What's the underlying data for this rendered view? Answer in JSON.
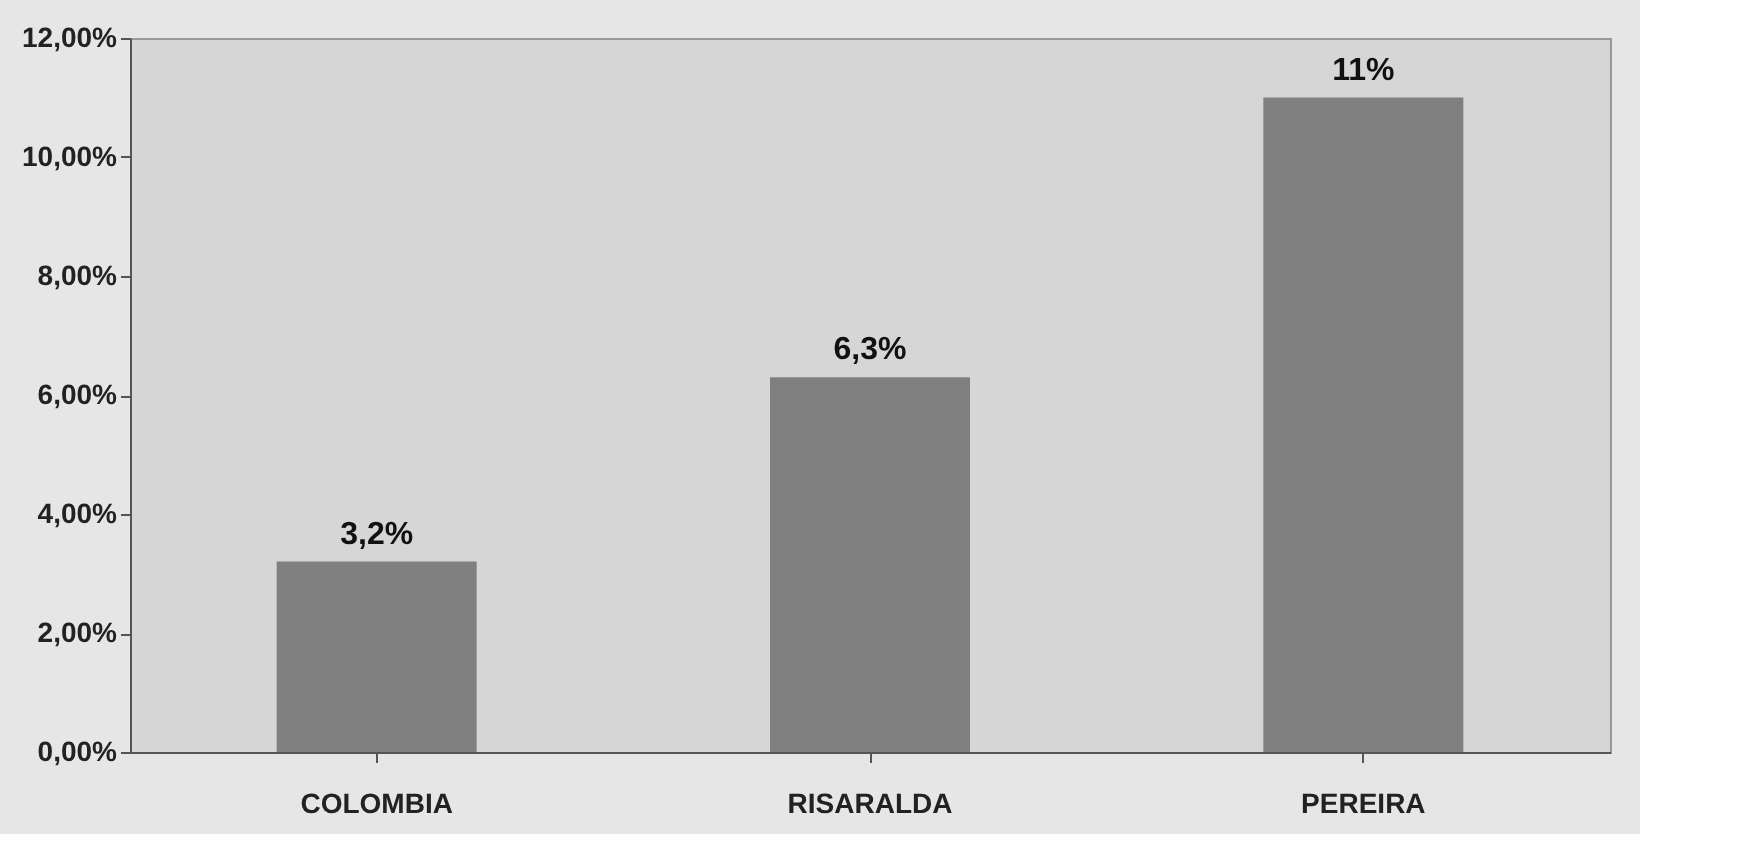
{
  "chart_data": {
    "type": "bar",
    "categories": [
      "COLOMBIA",
      "RISARALDA",
      "PEREIRA"
    ],
    "values": [
      3.2,
      6.3,
      11
    ],
    "value_labels": [
      "3,2%",
      "6,3%",
      "11%"
    ],
    "color": "#808080",
    "ylim": [
      0,
      12
    ],
    "yticks": [
      {
        "value": 0,
        "label": "0,00%"
      },
      {
        "value": 2,
        "label": "2,00%"
      },
      {
        "value": 4,
        "label": "4,00%"
      },
      {
        "value": 6,
        "label": "6,00%"
      },
      {
        "value": 8,
        "label": "8,00%"
      },
      {
        "value": 10,
        "label": "10,00%"
      },
      {
        "value": 12,
        "label": "12,00%"
      }
    ],
    "grid": false
  }
}
